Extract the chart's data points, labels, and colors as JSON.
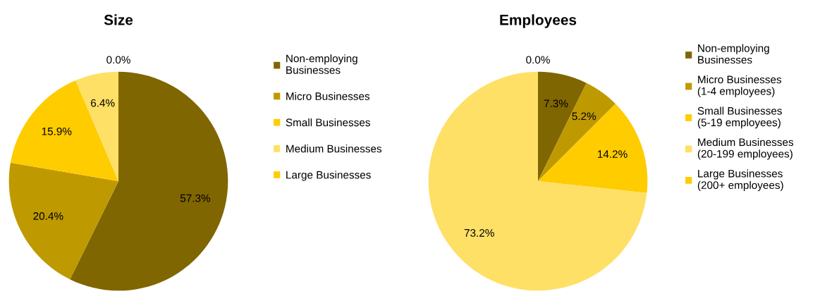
{
  "chart_data": [
    {
      "type": "pie",
      "title": "Size",
      "categories": [
        "Non-employing Businesses",
        "Micro Businesses",
        "Small Businesses",
        "Medium Businesses",
        "Large Businesses"
      ],
      "values": [
        57.3,
        20.4,
        15.9,
        6.4,
        0.0
      ],
      "value_labels": [
        "57.3%",
        "20.4%",
        "15.9%",
        "6.4%",
        "0.0%"
      ],
      "colors": [
        "#806600",
        "#bf9900",
        "#ffcc00",
        "#ffe066",
        "#ffcc00"
      ],
      "legend": "right"
    },
    {
      "type": "pie",
      "title": "Employees",
      "categories": [
        "Non-employing Businesses",
        "Micro Businesses (1-4 employees)",
        "Small Businesses (5-19 employees)",
        "Medium Businesses (20-199 employees)",
        "Large Businesses (200+ employees)"
      ],
      "values": [
        7.3,
        5.2,
        14.2,
        73.2,
        0.0
      ],
      "value_labels": [
        "7.3%",
        "5.2%",
        "14.2%",
        "73.2%",
        "0.0%"
      ],
      "colors": [
        "#806600",
        "#bf9900",
        "#ffcc00",
        "#ffe066",
        "#ffcc00"
      ],
      "legend": "right"
    }
  ]
}
